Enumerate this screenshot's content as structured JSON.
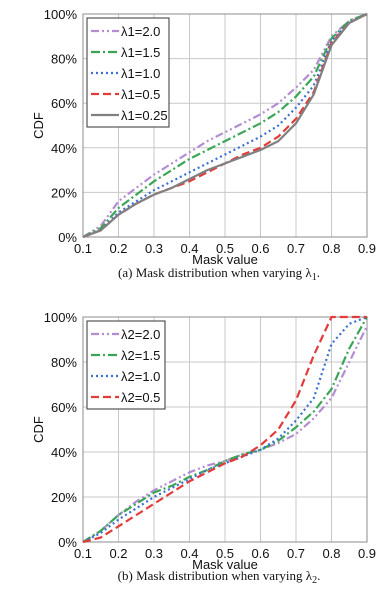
{
  "chart_data": [
    {
      "type": "line",
      "title": "",
      "caption": "(a)  Mask distribution when varying λ",
      "caption_sub": "1",
      "caption_end": ".",
      "xlabel": "Mask value",
      "ylabel": "CDF",
      "xlim": [
        0.1,
        0.9
      ],
      "ylim": [
        0,
        100
      ],
      "x_ticks": [
        "0.1",
        "0.2",
        "0.3",
        "0.4",
        "0.5",
        "0.6",
        "0.7",
        "0.8",
        "0.9"
      ],
      "y_ticks": [
        "0%",
        "20%",
        "40%",
        "60%",
        "80%",
        "100%"
      ],
      "grid": true,
      "legend_position": "top-left",
      "series": [
        {
          "name": "λ1=2.0",
          "color": "#b48cd2",
          "dash": "8,3,2,3,2,3",
          "x": [
            0.1,
            0.15,
            0.2,
            0.25,
            0.3,
            0.35,
            0.4,
            0.45,
            0.5,
            0.55,
            0.6,
            0.65,
            0.7,
            0.75,
            0.8,
            0.85,
            0.9
          ],
          "y": [
            0,
            5,
            16,
            22,
            28,
            33,
            38,
            43,
            47,
            51,
            55,
            60,
            67,
            75,
            90,
            97,
            100
          ]
        },
        {
          "name": "λ1=1.5",
          "color": "#3aa655",
          "dash": "9,3,2,3",
          "x": [
            0.1,
            0.15,
            0.2,
            0.25,
            0.3,
            0.35,
            0.4,
            0.45,
            0.5,
            0.55,
            0.6,
            0.65,
            0.7,
            0.75,
            0.8,
            0.85,
            0.9
          ],
          "y": [
            0,
            4,
            13,
            19,
            25,
            30,
            35,
            39,
            43,
            47,
            51,
            56,
            63,
            72,
            89,
            97,
            100
          ]
        },
        {
          "name": "λ1=1.0",
          "color": "#3b6fd4",
          "dash": "2,3",
          "x": [
            0.1,
            0.15,
            0.2,
            0.25,
            0.3,
            0.35,
            0.4,
            0.45,
            0.5,
            0.55,
            0.6,
            0.65,
            0.7,
            0.75,
            0.8,
            0.85,
            0.9
          ],
          "y": [
            0,
            3,
            11,
            16,
            21,
            25,
            29,
            33,
            37,
            41,
            45,
            50,
            58,
            68,
            88,
            96,
            100
          ]
        },
        {
          "name": "λ1=0.5",
          "color": "#e23b3b",
          "dash": "8,4",
          "x": [
            0.1,
            0.15,
            0.2,
            0.25,
            0.3,
            0.35,
            0.4,
            0.45,
            0.5,
            0.55,
            0.6,
            0.65,
            0.7,
            0.75,
            0.8,
            0.85,
            0.9
          ],
          "y": [
            0,
            3,
            10,
            15,
            19,
            22,
            25,
            29,
            33,
            37,
            40,
            45,
            53,
            65,
            87,
            96,
            100
          ]
        },
        {
          "name": "λ1=0.25",
          "color": "#808080",
          "dash": "",
          "x": [
            0.1,
            0.15,
            0.2,
            0.25,
            0.3,
            0.35,
            0.4,
            0.45,
            0.5,
            0.55,
            0.6,
            0.65,
            0.7,
            0.75,
            0.8,
            0.85,
            0.9
          ],
          "y": [
            0,
            3,
            10,
            15,
            19,
            22,
            26,
            30,
            33,
            36,
            39,
            43,
            51,
            64,
            86,
            96,
            100
          ]
        }
      ]
    },
    {
      "type": "line",
      "title": "",
      "caption": "(b)  Mask distribution when varying λ",
      "caption_sub": "2",
      "caption_end": ".",
      "xlabel": "Mask value",
      "ylabel": "CDF",
      "xlim": [
        0.1,
        0.9
      ],
      "ylim": [
        0,
        100
      ],
      "x_ticks": [
        "0.1",
        "0.2",
        "0.3",
        "0.4",
        "0.5",
        "0.6",
        "0.7",
        "0.8",
        "0.9"
      ],
      "y_ticks": [
        "0%",
        "20%",
        "40%",
        "60%",
        "80%",
        "100%"
      ],
      "grid": true,
      "legend_position": "top-left",
      "series": [
        {
          "name": "λ2=2.0",
          "color": "#b48cd2",
          "dash": "8,3,2,3,2,3",
          "x": [
            0.1,
            0.15,
            0.2,
            0.25,
            0.3,
            0.35,
            0.4,
            0.45,
            0.5,
            0.55,
            0.6,
            0.65,
            0.7,
            0.75,
            0.8,
            0.85,
            0.9
          ],
          "y": [
            0,
            5,
            12,
            18,
            23,
            27,
            31,
            34,
            36,
            39,
            41,
            44,
            48,
            55,
            64,
            80,
            96
          ]
        },
        {
          "name": "λ2=1.5",
          "color": "#3aa655",
          "dash": "9,3,2,3",
          "x": [
            0.1,
            0.15,
            0.2,
            0.25,
            0.3,
            0.35,
            0.4,
            0.45,
            0.5,
            0.55,
            0.6,
            0.65,
            0.7,
            0.75,
            0.8,
            0.85,
            0.9
          ],
          "y": [
            0,
            5,
            12,
            17,
            22,
            25,
            29,
            32,
            36,
            39,
            41,
            45,
            51,
            58,
            68,
            86,
            100
          ]
        },
        {
          "name": "λ2=1.0",
          "color": "#3b6fd4",
          "dash": "2,3",
          "x": [
            0.1,
            0.15,
            0.2,
            0.25,
            0.3,
            0.35,
            0.4,
            0.45,
            0.5,
            0.55,
            0.6,
            0.65,
            0.7,
            0.75,
            0.8,
            0.85,
            0.9
          ],
          "y": [
            0,
            4,
            10,
            15,
            20,
            24,
            28,
            32,
            35,
            38,
            41,
            46,
            54,
            64,
            88,
            97,
            100
          ]
        },
        {
          "name": "λ2=0.5",
          "color": "#e23b3b",
          "dash": "8,4",
          "x": [
            0.1,
            0.15,
            0.2,
            0.25,
            0.3,
            0.35,
            0.4,
            0.45,
            0.5,
            0.55,
            0.6,
            0.65,
            0.7,
            0.75,
            0.8,
            0.85,
            0.9
          ],
          "y": [
            0,
            2,
            7,
            12,
            17,
            22,
            27,
            31,
            35,
            38,
            43,
            50,
            63,
            83,
            100,
            100,
            100
          ]
        }
      ]
    }
  ]
}
